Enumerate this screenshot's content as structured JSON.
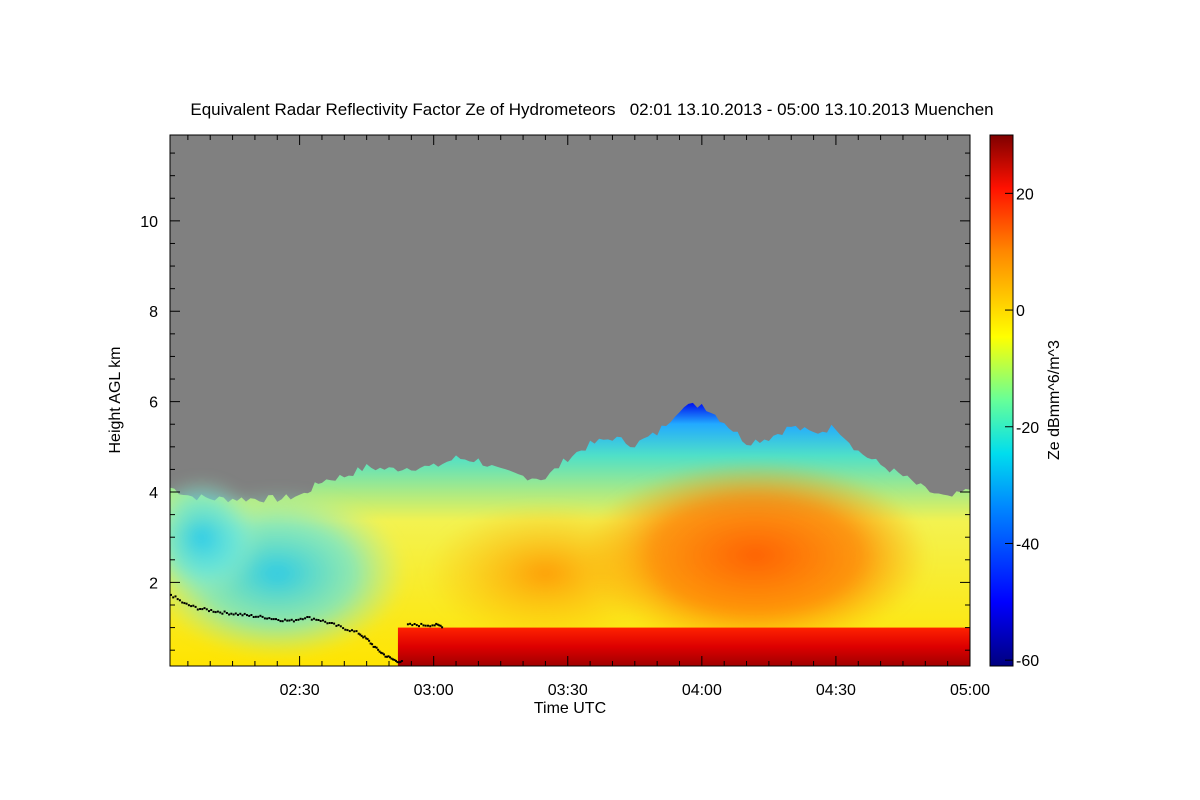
{
  "chart_data": {
    "type": "heatmap",
    "title": "Equivalent Radar Reflectivity Factor Ze of Hydrometeors   02:01 13.10.2013 - 05:00 13.10.2013 Muenchen",
    "xlabel": "Time UTC",
    "ylabel": "Height AGL km",
    "colorbar_label": "Ze dBmm^6/m^3",
    "x_range_minutes_utc": [
      121,
      300
    ],
    "y_range_km": [
      0.15,
      11.9
    ],
    "x_ticks": [
      {
        "label": "02:30",
        "minutes": 150
      },
      {
        "label": "03:00",
        "minutes": 180
      },
      {
        "label": "03:30",
        "minutes": 210
      },
      {
        "label": "04:00",
        "minutes": 240
      },
      {
        "label": "04:30",
        "minutes": 270
      },
      {
        "label": "05:00",
        "minutes": 300
      }
    ],
    "y_ticks": [
      {
        "label": "2",
        "value": 2
      },
      {
        "label": "4",
        "value": 4
      },
      {
        "label": "6",
        "value": 6
      },
      {
        "label": "8",
        "value": 8
      },
      {
        "label": "10",
        "value": 10
      }
    ],
    "colorbar_range_dbz": [
      -61,
      30
    ],
    "colorbar_ticks": [
      {
        "label": "20",
        "value": 20
      },
      {
        "label": "0",
        "value": 0
      },
      {
        "label": "-20",
        "value": -20
      },
      {
        "label": "-40",
        "value": -40
      },
      {
        "label": "-60",
        "value": -60
      }
    ],
    "no_data_color": "#808080",
    "cloud_top_km": [
      {
        "t": 121,
        "h": 4.1
      },
      {
        "t": 126,
        "h": 3.9
      },
      {
        "t": 131,
        "h": 3.85
      },
      {
        "t": 136,
        "h": 3.85
      },
      {
        "t": 141,
        "h": 3.85
      },
      {
        "t": 146,
        "h": 3.85
      },
      {
        "t": 151,
        "h": 3.95
      },
      {
        "t": 155,
        "h": 4.25
      },
      {
        "t": 160,
        "h": 4.35
      },
      {
        "t": 165,
        "h": 4.55
      },
      {
        "t": 170,
        "h": 4.5
      },
      {
        "t": 175,
        "h": 4.55
      },
      {
        "t": 180,
        "h": 4.55
      },
      {
        "t": 185,
        "h": 4.75
      },
      {
        "t": 190,
        "h": 4.7
      },
      {
        "t": 195,
        "h": 4.45
      },
      {
        "t": 200,
        "h": 4.35
      },
      {
        "t": 205,
        "h": 4.3
      },
      {
        "t": 210,
        "h": 4.75
      },
      {
        "t": 215,
        "h": 5.05
      },
      {
        "t": 220,
        "h": 5.2
      },
      {
        "t": 225,
        "h": 5.05
      },
      {
        "t": 230,
        "h": 5.3
      },
      {
        "t": 235,
        "h": 5.85
      },
      {
        "t": 240,
        "h": 5.95
      },
      {
        "t": 245,
        "h": 5.55
      },
      {
        "t": 250,
        "h": 5.1
      },
      {
        "t": 255,
        "h": 5.2
      },
      {
        "t": 260,
        "h": 5.45
      },
      {
        "t": 265,
        "h": 5.3
      },
      {
        "t": 270,
        "h": 5.45
      },
      {
        "t": 275,
        "h": 4.9
      },
      {
        "t": 280,
        "h": 4.6
      },
      {
        "t": 285,
        "h": 4.35
      },
      {
        "t": 290,
        "h": 4.05
      },
      {
        "t": 295,
        "h": 3.85
      },
      {
        "t": 300,
        "h": 4.05
      }
    ],
    "ceilometer_base_km": [
      {
        "t": 121,
        "h": 1.75
      },
      {
        "t": 124,
        "h": 1.55
      },
      {
        "t": 127,
        "h": 1.45
      },
      {
        "t": 130,
        "h": 1.4
      },
      {
        "t": 133,
        "h": 1.35
      },
      {
        "t": 136,
        "h": 1.32
      },
      {
        "t": 139,
        "h": 1.28
      },
      {
        "t": 142,
        "h": 1.25
      },
      {
        "t": 145,
        "h": 1.2
      },
      {
        "t": 148,
        "h": 1.17
      },
      {
        "t": 151,
        "h": 1.25
      },
      {
        "t": 154,
        "h": 1.2
      },
      {
        "t": 157,
        "h": 1.1
      },
      {
        "t": 160,
        "h": 1.0
      },
      {
        "t": 163,
        "h": 0.9
      },
      {
        "t": 165,
        "h": 0.75
      },
      {
        "t": 167,
        "h": 0.55
      },
      {
        "t": 169,
        "h": 0.4
      },
      {
        "t": 171,
        "h": 0.3
      },
      {
        "t": 173,
        "h": 0.25
      },
      {
        "t": 174,
        "h": 1.08
      },
      {
        "t": 177,
        "h": 1.08
      },
      {
        "t": 180,
        "h": 1.08
      },
      {
        "t": 182,
        "h": 1.05
      }
    ]
  }
}
